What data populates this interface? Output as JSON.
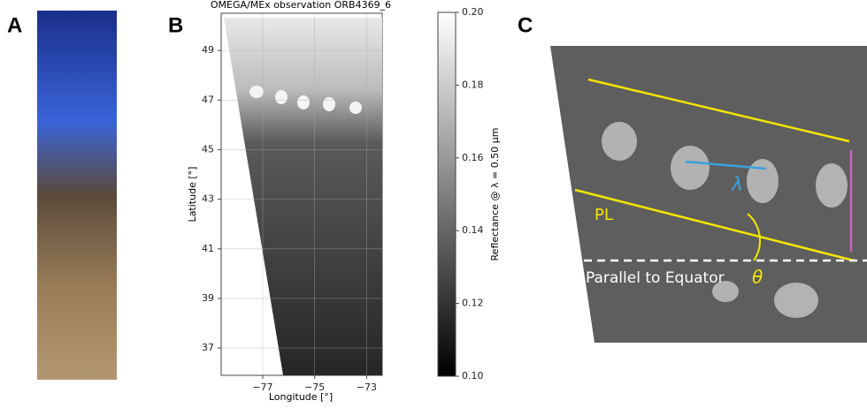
{
  "panels": {
    "a": {
      "label": "A"
    },
    "b": {
      "label": "B",
      "title": "OMEGA/MEx observation ORB4369_6",
      "xlabel": "Longitude [°]",
      "ylabel": "Latitude [°]",
      "xlim": [
        -78.6,
        -72.4
      ],
      "xticks": [
        {
          "value": -77,
          "label": "−77"
        },
        {
          "value": -75,
          "label": "−75"
        },
        {
          "value": -73,
          "label": "−73"
        }
      ],
      "ylim": [
        35.9,
        50.5
      ],
      "yticks": [
        37,
        39,
        41,
        43,
        45,
        47,
        49
      ],
      "colorbar": {
        "label": "Reflectance @ λ = 0.50 µm",
        "lim": [
          0.1,
          0.2
        ],
        "ticks": [
          {
            "value": 0.1,
            "label": "0.10"
          },
          0.12,
          0.14,
          0.16,
          0.18,
          {
            "value": 0.2,
            "label": "0.20"
          }
        ]
      }
    },
    "c": {
      "label": "C",
      "wavelength": "λ",
      "pl": "PL",
      "equator": "Parallel to Equator",
      "angle": "θ"
    }
  }
}
